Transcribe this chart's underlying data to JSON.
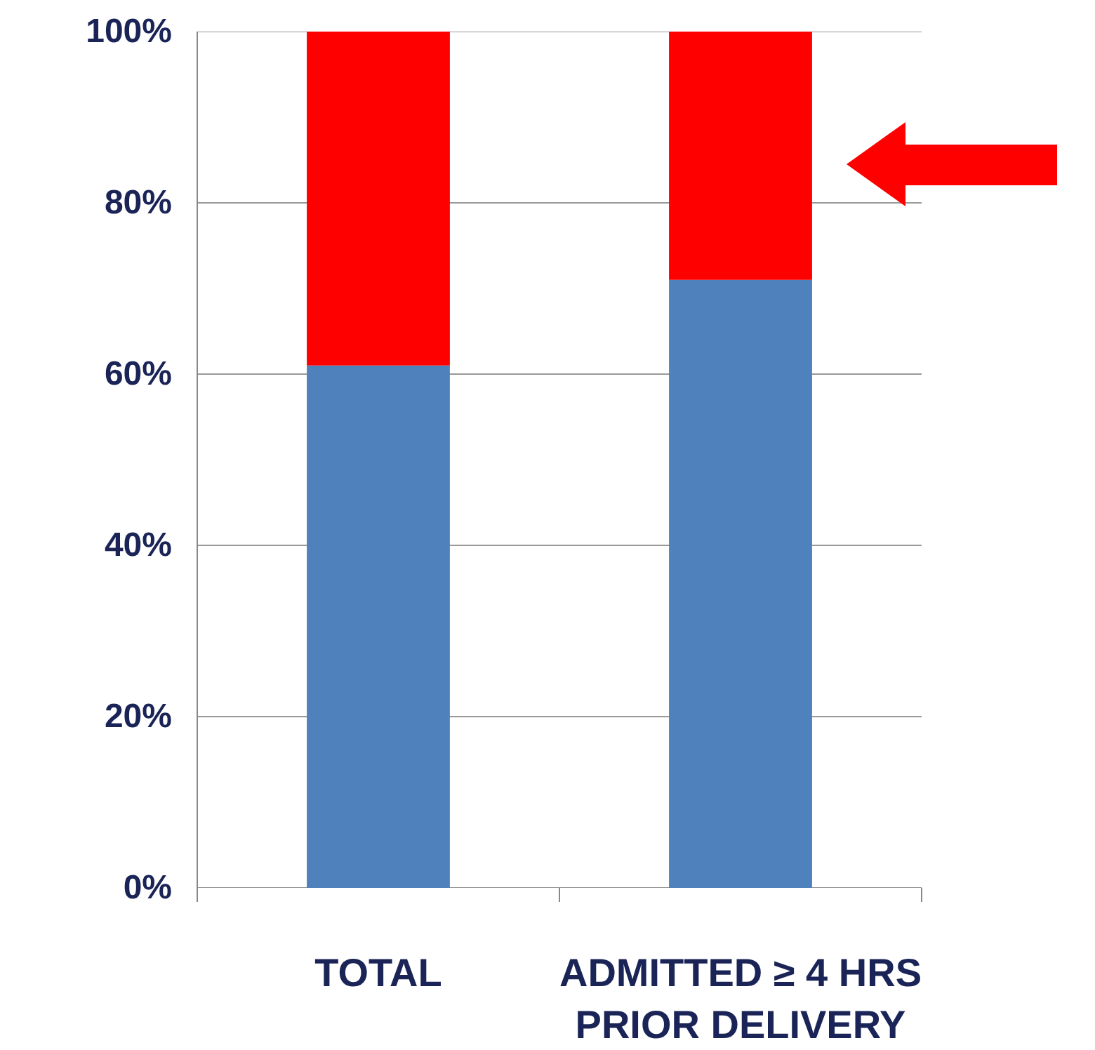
{
  "chart_data": {
    "type": "bar",
    "stacked": true,
    "categories": [
      "TOTAL",
      "ADMITTED ≥ 4 HRS\nPRIOR DELIVERY"
    ],
    "series": [
      {
        "color": "#4f81bd",
        "values": [
          61,
          71
        ]
      },
      {
        "color": "#ff0000",
        "values": [
          39,
          29
        ]
      }
    ],
    "ylim": [
      0,
      100
    ],
    "yticks": [
      {
        "value": 0,
        "label": "0%"
      },
      {
        "value": 20,
        "label": "20%"
      },
      {
        "value": 40,
        "label": "40%"
      },
      {
        "value": 60,
        "label": "60%"
      },
      {
        "value": 80,
        "label": "80%"
      },
      {
        "value": 100,
        "label": "100%"
      }
    ],
    "grid": "y"
  }
}
